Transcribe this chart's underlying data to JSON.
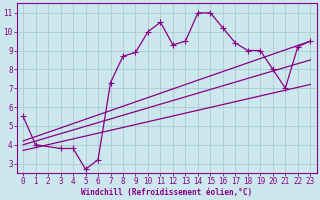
{
  "xlabel": "Windchill (Refroidissement éolien,°C)",
  "bg_color": "#cce8ee",
  "line_color": "#880088",
  "grid_color": "#aacccc",
  "spine_color": "#880088",
  "xlim": [
    -0.5,
    23.5
  ],
  "ylim": [
    2.5,
    11.5
  ],
  "xticks": [
    0,
    1,
    2,
    3,
    4,
    5,
    6,
    7,
    8,
    9,
    10,
    11,
    12,
    13,
    14,
    15,
    16,
    17,
    18,
    19,
    20,
    21,
    22,
    23
  ],
  "yticks": [
    3,
    4,
    5,
    6,
    7,
    8,
    9,
    10,
    11
  ],
  "series1_x": [
    0,
    1,
    3,
    4,
    5,
    6,
    7,
    8,
    9,
    10,
    11,
    12,
    13,
    14,
    15,
    16,
    17,
    18,
    19,
    20,
    21,
    22,
    23
  ],
  "series1_y": [
    5.5,
    4.0,
    3.8,
    3.8,
    2.7,
    3.2,
    7.3,
    8.7,
    8.9,
    10.0,
    10.5,
    9.3,
    9.5,
    11.0,
    11.0,
    10.2,
    9.4,
    9.0,
    9.0,
    8.0,
    7.0,
    9.2,
    9.5
  ],
  "series2_x": [
    0,
    23
  ],
  "series2_y": [
    4.2,
    9.5
  ],
  "series3_x": [
    0,
    23
  ],
  "series3_y": [
    4.0,
    8.5
  ],
  "series4_x": [
    0,
    23
  ],
  "series4_y": [
    3.7,
    7.2
  ],
  "tick_fontsize": 5.5,
  "xlabel_fontsize": 5.5,
  "marker": "+",
  "markersize": 4,
  "linewidth": 0.9
}
